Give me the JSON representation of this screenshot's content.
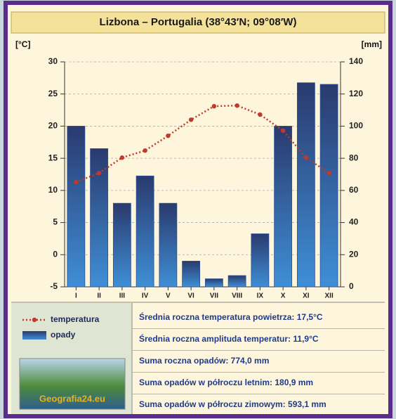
{
  "chart_data": {
    "type": "climate",
    "title": "Lizbona – Portugalia (38°43′N; 09°08′W)",
    "y_label": "[°C]",
    "y2_label": "[mm]",
    "categories": [
      "I",
      "II",
      "III",
      "IV",
      "V",
      "VI",
      "VII",
      "VIII",
      "IX",
      "X",
      "XI",
      "XII"
    ],
    "series": [
      {
        "name": "temperatura",
        "color": "#c0392b",
        "axis": "y",
        "kind": "line",
        "values": [
          11.3,
          12.7,
          15.1,
          16.2,
          18.5,
          21,
          23.1,
          23.2,
          21.8,
          19.3,
          15.1,
          12.7
        ]
      },
      {
        "name": "opady",
        "color": "#2d4f97",
        "axis": "y2",
        "kind": "bar",
        "values": [
          100,
          86,
          52,
          69,
          52,
          16,
          5,
          7,
          33,
          100,
          127,
          126
        ]
      }
    ],
    "ylim": [
      -5,
      30
    ],
    "yticks": [
      -5,
      0,
      5,
      10,
      15,
      20,
      25,
      30
    ],
    "y2lim": [
      0,
      140
    ],
    "y2ticks": [
      0,
      20,
      40,
      60,
      80,
      100,
      120,
      140
    ],
    "grid": true
  },
  "stats": [
    "Średnia roczna temperatura powietrza: 17,5°C",
    "Średnia roczna amplituda temperatur: 11,9°C",
    "Suma roczna opadów: 774,0 mm",
    "Suma opadów w półroczu letnim: 180,9 mm",
    "Suma opadów w półroczu zimowym: 593,1 mm"
  ],
  "logo": {
    "text": "Geografia24.eu"
  }
}
